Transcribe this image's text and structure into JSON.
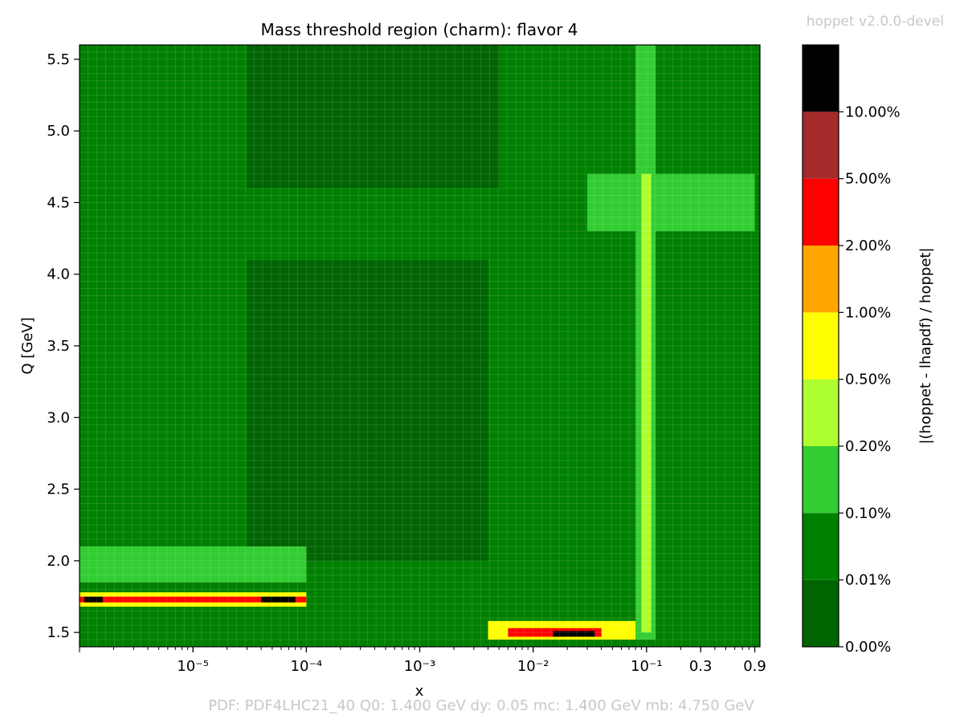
{
  "chart_data": {
    "type": "heatmap",
    "title": "Mass threshold region (charm): flavor 4",
    "xlabel": "x",
    "ylabel": "Q [GeV]",
    "x_scale": "log",
    "xlim": [
      1e-06,
      1.0
    ],
    "ylim": [
      1.4,
      5.6
    ],
    "x_ticks": [
      {
        "value": 1e-05,
        "label": "10⁻⁵"
      },
      {
        "value": 0.0001,
        "label": "10⁻⁴"
      },
      {
        "value": 0.001,
        "label": "10⁻³"
      },
      {
        "value": 0.01,
        "label": "10⁻²"
      },
      {
        "value": 0.1,
        "label": "10⁻¹"
      },
      {
        "value": 0.3,
        "label": "0.3"
      },
      {
        "value": 0.9,
        "label": "0.9"
      }
    ],
    "y_ticks": [
      {
        "value": 1.5,
        "label": "1.5"
      },
      {
        "value": 2.0,
        "label": "2.0"
      },
      {
        "value": 2.5,
        "label": "2.5"
      },
      {
        "value": 3.0,
        "label": "3.0"
      },
      {
        "value": 3.5,
        "label": "3.5"
      },
      {
        "value": 4.0,
        "label": "4.0"
      },
      {
        "value": 4.5,
        "label": "4.5"
      },
      {
        "value": 5.0,
        "label": "5.0"
      },
      {
        "value": 5.5,
        "label": "5.5"
      }
    ],
    "colorbar": {
      "label": "|(hoppet - lhapdf) / hoppet|",
      "levels": [
        {
          "label": "0.00%",
          "color": "#006400"
        },
        {
          "label": "0.01%",
          "color": "#008000"
        },
        {
          "label": "0.10%",
          "color": "#32cd32"
        },
        {
          "label": "0.20%",
          "color": "#adff2f"
        },
        {
          "label": "0.50%",
          "color": "#ffff00"
        },
        {
          "label": "1.00%",
          "color": "#ffa500"
        },
        {
          "label": "2.00%",
          "color": "#ff0000"
        },
        {
          "label": "5.00%",
          "color": "#a52a2a"
        },
        {
          "label": "10.00%",
          "color": "#000000"
        }
      ]
    },
    "regions": [
      {
        "level": 0,
        "x": [
          3e-05,
          0.004
        ],
        "y": [
          2.0,
          4.1
        ]
      },
      {
        "level": 0,
        "x": [
          3e-05,
          0.005
        ],
        "y": [
          4.6,
          5.6
        ]
      },
      {
        "level": 2,
        "x": [
          1e-06,
          0.0001
        ],
        "y": [
          1.85,
          2.1
        ]
      },
      {
        "level": 2,
        "x": [
          0.03,
          0.9
        ],
        "y": [
          4.3,
          4.7
        ]
      },
      {
        "level": 2,
        "x": [
          0.08,
          0.12
        ],
        "y": [
          1.45,
          5.6
        ]
      },
      {
        "level": 3,
        "x": [
          0.09,
          0.11
        ],
        "y": [
          1.5,
          4.7
        ]
      },
      {
        "level": 4,
        "x": [
          1e-06,
          0.0001
        ],
        "y": [
          1.68,
          1.78
        ]
      },
      {
        "level": 6,
        "x": [
          1e-06,
          0.0001
        ],
        "y": [
          1.71,
          1.75
        ]
      },
      {
        "level": 8,
        "x": [
          1.1e-06,
          1.6e-06
        ],
        "y": [
          1.71,
          1.75
        ]
      },
      {
        "level": 8,
        "x": [
          4e-05,
          8e-05
        ],
        "y": [
          1.71,
          1.75
        ]
      },
      {
        "level": 4,
        "x": [
          0.004,
          0.08
        ],
        "y": [
          1.45,
          1.58
        ]
      },
      {
        "level": 6,
        "x": [
          0.006,
          0.04
        ],
        "y": [
          1.47,
          1.53
        ]
      },
      {
        "level": 8,
        "x": [
          0.015,
          0.035
        ],
        "y": [
          1.47,
          1.51
        ]
      }
    ],
    "watermark_top": "hoppet v2.0.0-devel",
    "footer": "PDF: PDF4LHC21_40   Q0: 1.400 GeV  dy: 0.05   mc: 1.400 GeV  mb: 4.750 GeV"
  }
}
